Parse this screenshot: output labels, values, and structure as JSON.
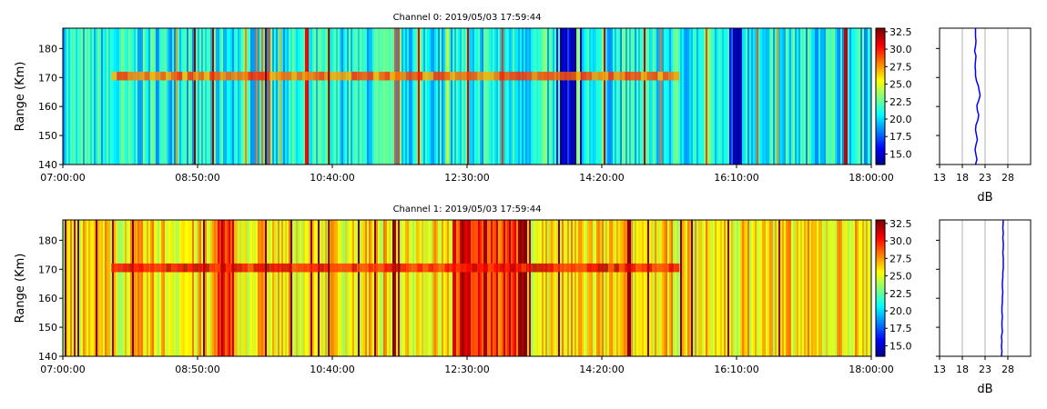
{
  "chart_data": [
    {
      "type": "heatmap",
      "title": "Channel 0: 2019/05/03 17:59:44",
      "ylabel": "Range (Km)",
      "xlabel": "",
      "x_range": [
        "07:00:00",
        "18:00:00"
      ],
      "x_ticks": [
        "07:00:00",
        "08:50:00",
        "10:40:00",
        "12:30:00",
        "14:20:00",
        "16:10:00",
        "18:00:00"
      ],
      "y_range": [
        140,
        187
      ],
      "y_ticks": [
        140,
        150,
        160,
        170,
        180
      ],
      "colorbar": {
        "colormap": "jet",
        "range": [
          13.5,
          33
        ],
        "ticks": [
          "15.0",
          "17.5",
          "20.0",
          "22.5",
          "25.0",
          "27.5",
          "30.0",
          "32.5"
        ]
      },
      "echo_layer": {
        "range_km": [
          169,
          172
        ],
        "level_db": 28.5
      },
      "mean_level_db": 21,
      "profile": {
        "type": "line",
        "xlabel": "dB",
        "x_ticks": [
          13,
          18,
          23,
          28
        ],
        "x_range": [
          13,
          33
        ],
        "color": "#0000ff",
        "x": [
          20.9,
          21.2,
          21.0,
          20.8,
          21.0,
          21.3,
          21.1,
          20.9,
          21.0,
          21.4,
          21.6,
          21.3,
          21.2,
          21.6,
          21.9,
          21.7,
          21.5,
          21.1,
          20.9,
          20.9,
          20.8,
          20.9,
          21.0,
          20.7,
          20.9,
          21.0,
          20.9,
          20.9
        ],
        "y": [
          140,
          141.7,
          143.4,
          145.1,
          146.8,
          148.5,
          150.2,
          151.9,
          153.6,
          155.3,
          157,
          158.7,
          160.4,
          162.1,
          163.8,
          165.5,
          167.2,
          168.9,
          170.6,
          172.3,
          174,
          175.7,
          177.4,
          179.1,
          180.8,
          182.5,
          184.2,
          187
        ]
      }
    },
    {
      "type": "heatmap",
      "title": "Channel 1: 2019/05/03 17:59:44",
      "ylabel": "Range (Km)",
      "xlabel": "",
      "x_range": [
        "07:00:00",
        "18:00:00"
      ],
      "x_ticks": [
        "07:00:00",
        "08:50:00",
        "10:40:00",
        "12:30:00",
        "14:20:00",
        "16:10:00",
        "18:00:00"
      ],
      "y_range": [
        140,
        187
      ],
      "y_ticks": [
        140,
        150,
        160,
        170,
        180
      ],
      "colorbar": {
        "colormap": "jet",
        "range": [
          13.5,
          33
        ],
        "ticks": [
          "15.0",
          "17.5",
          "20.0",
          "22.5",
          "25.0",
          "27.5",
          "30.0",
          "32.5"
        ]
      },
      "echo_layer": {
        "range_km": [
          169,
          172
        ],
        "level_db": 30.5
      },
      "mean_level_db": 26,
      "profile": {
        "type": "line",
        "xlabel": "dB",
        "x_ticks": [
          13,
          18,
          23,
          28
        ],
        "x_range": [
          13,
          33
        ],
        "color": "#0000ff",
        "x": [
          26.6,
          26.7,
          26.6,
          26.7,
          26.6,
          26.8,
          26.7,
          26.7,
          26.8,
          26.7,
          26.7,
          26.8,
          26.8,
          26.9,
          26.8,
          26.8,
          26.9,
          26.9,
          27.0,
          27.0,
          27.0,
          26.9,
          27.0,
          27.0,
          26.9,
          27.0,
          26.9,
          27.0
        ],
        "y": [
          140,
          141.7,
          143.4,
          145.1,
          146.8,
          148.5,
          150.2,
          151.9,
          153.6,
          155.3,
          157,
          158.7,
          160.4,
          162.1,
          163.8,
          165.5,
          167.2,
          168.9,
          170.6,
          172.3,
          174,
          175.7,
          177.4,
          179.1,
          180.8,
          182.5,
          184.2,
          187
        ]
      }
    }
  ]
}
